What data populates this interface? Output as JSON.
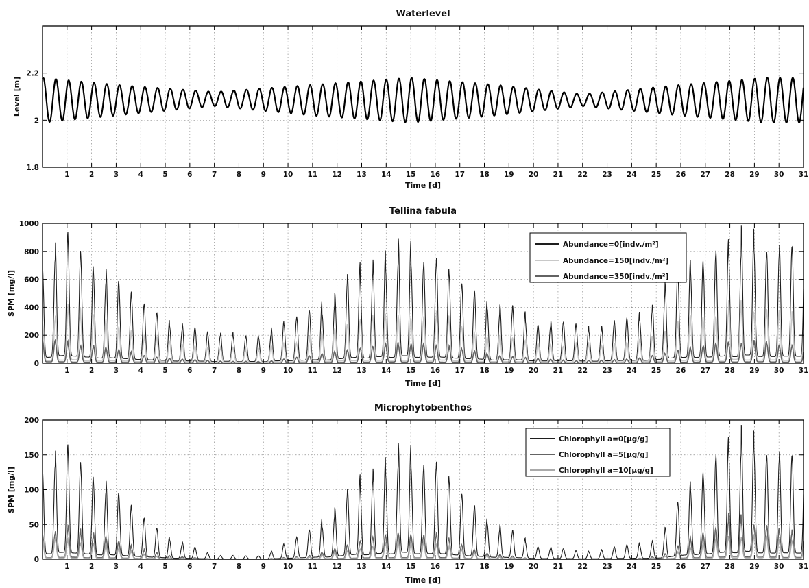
{
  "chart_data": [
    {
      "type": "line",
      "title": "Waterlevel",
      "xlabel": "Time [d]",
      "ylabel": "Level [m]",
      "xlim": [
        0,
        31
      ],
      "ylim": [
        1.8,
        2.4
      ],
      "xticks": [
        "1",
        "2",
        "3",
        "4",
        "5",
        "6",
        "7",
        "8",
        "9",
        "10",
        "11",
        "12",
        "13",
        "14",
        "15",
        "16",
        "17",
        "18",
        "19",
        "20",
        "21",
        "22",
        "23",
        "24",
        "25",
        "26",
        "27",
        "28",
        "29",
        "30",
        "31"
      ],
      "yticks": [
        "1.8",
        "2",
        "2.2"
      ],
      "ytick_values": [
        1.8,
        2.0,
        2.2
      ],
      "grid": true,
      "legend": null,
      "model": {
        "tide_period_days": 0.5175,
        "mean": 2.085,
        "amplitude_spring": 0.095,
        "amplitude_neap": 0.03
      },
      "series": [
        {
          "color": "#000000",
          "x": [
            0,
            3,
            7,
            11,
            15,
            18.5,
            22,
            26,
            29.5,
            31
          ],
          "envelope_max": [
            2.18,
            2.15,
            2.12,
            2.15,
            2.18,
            2.15,
            2.11,
            2.15,
            2.18,
            2.18
          ],
          "envelope_min": [
            1.99,
            2.02,
            2.06,
            2.02,
            1.99,
            2.02,
            2.06,
            2.02,
            1.99,
            1.99
          ]
        }
      ]
    },
    {
      "type": "line",
      "title": "Tellina fabula",
      "xlabel": "Time [d]",
      "ylabel": "SPM [mg/l]",
      "xlim": [
        0,
        31
      ],
      "ylim": [
        0,
        1000
      ],
      "xticks": [
        "1",
        "2",
        "3",
        "4",
        "5",
        "6",
        "7",
        "8",
        "9",
        "10",
        "11",
        "12",
        "13",
        "14",
        "15",
        "16",
        "17",
        "18",
        "19",
        "20",
        "21",
        "22",
        "23",
        "24",
        "25",
        "26",
        "27",
        "28",
        "29",
        "30",
        "31"
      ],
      "yticks": [
        "0",
        "200",
        "400",
        "600",
        "800",
        "1000"
      ],
      "ytick_values": [
        0,
        200,
        400,
        600,
        800,
        1000
      ],
      "grid": true,
      "legend": "top-right",
      "series": [
        {
          "name": "Abundance=0[indv./m²]",
          "color": "#1e1e1e",
          "x": [
            0,
            1,
            3,
            5,
            7,
            9,
            11,
            13,
            14.5,
            16,
            18,
            20,
            22,
            24,
            26,
            28,
            30,
            31
          ],
          "peak": [
            750,
            880,
            550,
            320,
            200,
            200,
            350,
            650,
            800,
            750,
            450,
            300,
            250,
            300,
            600,
            900,
            820,
            800
          ]
        },
        {
          "name": "Abundance=150[indv./m²]",
          "color": "#c8c8c8",
          "x": [
            0,
            1,
            3,
            5,
            7,
            9,
            11,
            13,
            14.5,
            16,
            18,
            20,
            22,
            24,
            26,
            28,
            30,
            31
          ],
          "peak": [
            330,
            390,
            250,
            150,
            100,
            100,
            180,
            300,
            370,
            340,
            220,
            150,
            130,
            150,
            280,
            400,
            380,
            360
          ]
        },
        {
          "name": "Abundance=350[indv./m²]",
          "color": "#626262",
          "x": [
            0,
            1,
            3,
            5,
            7,
            9,
            11,
            13,
            14.5,
            16,
            18,
            20,
            22,
            24,
            26,
            28,
            30,
            31
          ],
          "peak": [
            140,
            150,
            90,
            40,
            15,
            10,
            50,
            110,
            140,
            130,
            70,
            30,
            15,
            30,
            100,
            160,
            130,
            130
          ]
        }
      ]
    },
    {
      "type": "line",
      "title": "Microphytobenthos",
      "xlabel": "Time [d]",
      "ylabel": "SPM [mg/l]",
      "xlim": [
        0,
        31
      ],
      "ylim": [
        0,
        200
      ],
      "xticks": [
        "1",
        "2",
        "3",
        "4",
        "5",
        "6",
        "7",
        "8",
        "9",
        "10",
        "11",
        "12",
        "13",
        "14",
        "15",
        "16",
        "17",
        "18",
        "19",
        "20",
        "21",
        "22",
        "23",
        "24",
        "25",
        "26",
        "27",
        "28",
        "29",
        "30",
        "31"
      ],
      "yticks": [
        "0",
        "50",
        "100",
        "150",
        "200"
      ],
      "ytick_values": [
        0,
        50,
        100,
        150,
        200
      ],
      "grid": true,
      "legend": "top-right",
      "series": [
        {
          "name": "Chlorophyll a=0[μg/g]",
          "color": "#1e1e1e",
          "x": [
            0,
            1,
            3,
            5,
            7,
            9,
            11,
            13,
            14.5,
            16,
            18,
            20,
            22,
            24,
            25.2,
            26,
            28,
            30,
            31
          ],
          "peak": [
            140,
            155,
            90,
            35,
            5,
            5,
            40,
            110,
            150,
            140,
            60,
            20,
            10,
            20,
            30,
            80,
            180,
            150,
            140
          ]
        },
        {
          "name": "Chlorophyll a=5[μg/g]",
          "color": "#646464",
          "x": [
            0,
            1,
            3,
            5,
            7,
            9,
            11,
            13,
            14.5,
            16,
            18,
            20,
            22,
            24,
            25.2,
            26,
            28,
            30,
            31
          ],
          "peak": [
            40,
            45,
            25,
            5,
            0,
            0,
            5,
            25,
            40,
            35,
            10,
            0,
            0,
            0,
            5,
            20,
            60,
            45,
            40
          ]
        },
        {
          "name": "Chlorophyll a=10[μg/g]",
          "color": "#aaaaaa",
          "x": [
            0,
            1,
            3,
            5,
            7,
            9,
            11,
            13,
            14.5,
            16,
            18,
            20,
            22,
            24,
            25.2,
            26,
            28,
            30,
            31
          ],
          "peak": [
            25,
            28,
            15,
            2,
            0,
            0,
            3,
            15,
            25,
            22,
            5,
            0,
            0,
            0,
            3,
            12,
            35,
            28,
            25
          ]
        }
      ]
    }
  ]
}
